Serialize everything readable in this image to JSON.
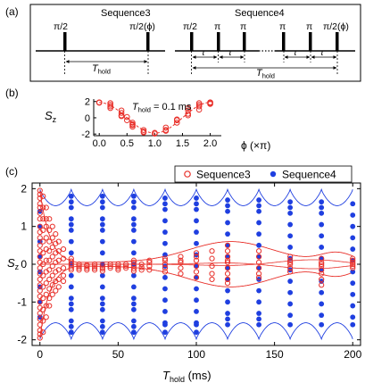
{
  "panel_labels": {
    "a": "(a)",
    "b": "(b)",
    "c": "(c)"
  },
  "panel_a": {
    "seq3_title": "Sequence3",
    "seq4_title": "Sequence4",
    "pi_half": "π/2",
    "pi_half_phi": "π/2(ϕ)",
    "pi": "π",
    "tau": "τ",
    "t_hold_main": "T",
    "t_hold_sub": "hold"
  },
  "chart_data": [
    {
      "type": "scatter",
      "panel": "b",
      "annotation": {
        "main": "T",
        "sub": "hold",
        "rest": " = 0.1 ms"
      },
      "ylabel": {
        "main": "S",
        "sub": "z"
      },
      "xlabel": "ϕ (×π)",
      "xlim": [
        -0.1,
        2.2
      ],
      "ylim": [
        -2.2,
        2.3
      ],
      "xticks": [
        "0.0",
        "0.5",
        "1.0",
        "1.5",
        "2.0"
      ],
      "xtick_values": [
        0,
        0.5,
        1,
        1.5,
        2
      ],
      "yticks": [
        "2",
        "0",
        "-2"
      ],
      "ytick_values": [
        2,
        0,
        -2
      ],
      "colors": {
        "points": "#e8302a",
        "fit": "#e8302a"
      },
      "fit": "dashed cosine",
      "points": [
        [
          0,
          1.85
        ],
        [
          0,
          1.9
        ],
        [
          0.2,
          1.4
        ],
        [
          0.2,
          1.6
        ],
        [
          0.2,
          1.2
        ],
        [
          0.2,
          1.8
        ],
        [
          0.4,
          0.6
        ],
        [
          0.4,
          0.2
        ],
        [
          0.4,
          0.9
        ],
        [
          0.4,
          0.3
        ],
        [
          0.5,
          0.1
        ],
        [
          0.5,
          -0.3
        ],
        [
          0.6,
          -0.6
        ],
        [
          0.6,
          -0.9
        ],
        [
          0.6,
          -1.1
        ],
        [
          0.6,
          -0.8
        ],
        [
          0.8,
          -1.5
        ],
        [
          0.8,
          -1.8
        ],
        [
          0.8,
          -1.7
        ],
        [
          1.0,
          -1.95
        ],
        [
          1.0,
          -1.85
        ],
        [
          1.2,
          -1.2
        ],
        [
          1.2,
          -1.5
        ],
        [
          1.2,
          -1.6
        ],
        [
          1.4,
          -0.6
        ],
        [
          1.4,
          -0.2
        ],
        [
          1.4,
          -0.3
        ],
        [
          1.6,
          0.5
        ],
        [
          1.6,
          0.9
        ],
        [
          1.6,
          1.2
        ],
        [
          1.6,
          0.3
        ],
        [
          1.8,
          1.4
        ],
        [
          1.8,
          1.6
        ],
        [
          1.8,
          1.8
        ],
        [
          1.8,
          1.0
        ],
        [
          2.0,
          1.8
        ],
        [
          2.0,
          1.9
        ],
        [
          2.0,
          1.7
        ]
      ]
    },
    {
      "type": "scatter",
      "panel": "c",
      "xlabel": {
        "main": "T",
        "sub": "hold",
        "rest": " (ms)"
      },
      "ylabel": {
        "main": "S",
        "sub": "z"
      },
      "xlim": [
        -5,
        205
      ],
      "ylim": [
        -2.15,
        2.15
      ],
      "xticks": [
        "0",
        "50",
        "100",
        "150",
        "200"
      ],
      "xtick_values": [
        0,
        50,
        100,
        150,
        200
      ],
      "yticks": [
        "2",
        "1",
        "0",
        "-1",
        "-2"
      ],
      "ytick_values": [
        2,
        1,
        0,
        -1,
        -2
      ],
      "legend_position": "top-right",
      "series": [
        {
          "name": "Sequence3",
          "marker": "open-circle",
          "color": "#e8302a",
          "columns": [
            {
              "x": 0,
              "y": [
                1.95,
                1.85,
                1.75,
                1.6,
                1.5,
                1.35,
                1.2,
                1.0,
                0.85,
                0.7,
                0.5,
                0.35,
                0.2,
                0.05,
                -0.1,
                -0.25,
                -0.4,
                -0.55,
                -0.7,
                -0.85,
                -1.0,
                -1.15,
                -1.3,
                -1.45,
                -1.6,
                -1.75,
                -1.85,
                -1.95
              ]
            },
            {
              "x": 2,
              "y": [
                1.8,
                1.5,
                1.2,
                0.9,
                0.6,
                0.3,
                0.0,
                -0.3,
                -0.6,
                -0.9,
                -1.2,
                -1.5,
                -1.8
              ]
            },
            {
              "x": 4,
              "y": [
                1.5,
                1.2,
                1.0,
                0.7,
                0.4,
                0.1,
                -0.2,
                -0.5,
                -0.8,
                -1.1,
                -1.4
              ]
            },
            {
              "x": 6,
              "y": [
                1.2,
                0.9,
                0.6,
                0.35,
                0.1,
                -0.15,
                -0.4,
                -0.65,
                -0.9,
                -1.1
              ]
            },
            {
              "x": 8,
              "y": [
                1.0,
                0.7,
                0.45,
                0.2,
                -0.05,
                -0.3,
                -0.55,
                -0.8
              ]
            },
            {
              "x": 10,
              "y": [
                0.8,
                0.55,
                0.3,
                0.05,
                -0.2,
                -0.45,
                -0.7
              ]
            },
            {
              "x": 12,
              "y": [
                0.6,
                0.35,
                0.1,
                -0.15,
                -0.4,
                -0.6
              ]
            },
            {
              "x": 15,
              "y": [
                0.4,
                0.15,
                -0.1,
                -0.3,
                -0.45
              ]
            },
            {
              "x": 20,
              "y": [
                0.08,
                0.02,
                -0.04,
                -0.1,
                0.15,
                -0.15
              ]
            },
            {
              "x": 25,
              "y": [
                -0.05,
                -0.1,
                -0.15,
                0.0
              ]
            },
            {
              "x": 30,
              "y": [
                -0.05,
                -0.1,
                -0.15,
                -0.02
              ]
            },
            {
              "x": 35,
              "y": [
                -0.05,
                -0.1,
                -0.15,
                0.0
              ]
            },
            {
              "x": 40,
              "y": [
                -0.02,
                -0.08,
                -0.12,
                -0.18
              ]
            },
            {
              "x": 45,
              "y": [
                -0.05,
                -0.1,
                0.0
              ]
            },
            {
              "x": 50,
              "y": [
                0.0,
                -0.05,
                -0.1,
                -0.15
              ]
            },
            {
              "x": 55,
              "y": [
                -0.05,
                -0.1,
                0.0
              ]
            },
            {
              "x": 60,
              "y": [
                0.05,
                -0.05,
                -0.12,
                -0.18,
                0.1
              ]
            },
            {
              "x": 65,
              "y": [
                0.0,
                -0.08,
                -0.15
              ]
            },
            {
              "x": 70,
              "y": [
                0.05,
                -0.05,
                -0.15,
                0.1
              ]
            },
            {
              "x": 80,
              "y": [
                0.1,
                0.0,
                -0.1,
                -0.2,
                0.15
              ]
            },
            {
              "x": 90,
              "y": [
                0.2,
                0.05,
                -0.1,
                -0.25,
                0.1
              ]
            },
            {
              "x": 100,
              "y": [
                0.3,
                0.1,
                -0.05,
                -0.2,
                -0.35,
                0.2
              ]
            },
            {
              "x": 110,
              "y": [
                0.35,
                0.15,
                -0.05,
                -0.25,
                -0.4
              ]
            },
            {
              "x": 120,
              "y": [
                0.5,
                0.35,
                0.2,
                0.05,
                -0.1,
                -0.25,
                -0.4,
                -0.5,
                0.1
              ]
            },
            {
              "x": 140,
              "y": [
                0.35,
                0.2,
                0.05,
                -0.1,
                -0.25,
                -0.35
              ]
            },
            {
              "x": 160,
              "y": [
                0.2,
                0.1,
                0.0,
                -0.1,
                -0.2,
                0.05
              ]
            },
            {
              "x": 180,
              "y": [
                0.15,
                0.05,
                -0.05,
                -0.15,
                -0.25,
                -0.4,
                -0.55,
                0.0
              ]
            },
            {
              "x": 200,
              "y": [
                0.15,
                0.1,
                0.0,
                -0.05,
                -0.1,
                0.05
              ]
            }
          ]
        },
        {
          "name": "Sequence4",
          "marker": "filled-circle",
          "color": "#1f3fe0",
          "columns": [
            {
              "x": 0,
              "y": [
                1.4,
                1.0,
                0.6,
                0.2,
                -0.2,
                -0.6,
                -1.0,
                -1.4
              ]
            },
            {
              "x": 20,
              "y": [
                1.8,
                1.5,
                1.2,
                0.9,
                0.6,
                0.3,
                0.0,
                -0.3,
                -0.6,
                -0.9,
                -1.2,
                -1.5,
                -1.8,
                1.65,
                -1.65,
                1.05,
                -1.05
              ]
            },
            {
              "x": 40,
              "y": [
                1.8,
                1.5,
                1.2,
                0.9,
                0.6,
                0.3,
                0.0,
                -0.3,
                -0.6,
                -0.9,
                -1.2,
                -1.5,
                -1.8,
                1.65,
                -1.65,
                1.05,
                -1.05
              ]
            },
            {
              "x": 60,
              "y": [
                1.8,
                1.5,
                1.2,
                0.9,
                0.6,
                0.3,
                0.0,
                -0.3,
                -0.6,
                -0.9,
                -1.2,
                -1.5,
                -1.8,
                1.65,
                -1.65,
                1.05,
                -1.05
              ]
            },
            {
              "x": 80,
              "y": [
                1.75,
                1.45,
                1.15,
                0.85,
                0.55,
                0.25,
                -0.05,
                -0.35,
                -0.65,
                -0.95,
                -1.25,
                -1.55,
                -1.8,
                1.6,
                -1.6
              ]
            },
            {
              "x": 100,
              "y": [
                1.75,
                1.45,
                1.15,
                0.85,
                0.55,
                0.25,
                -0.05,
                -0.35,
                -0.65,
                -0.95,
                -1.25,
                -1.55,
                -1.8,
                1.6,
                -1.6
              ]
            },
            {
              "x": 120,
              "y": [
                1.7,
                1.4,
                1.1,
                0.8,
                0.5,
                0.2,
                -0.1,
                -0.4,
                -0.7,
                -1.0,
                -1.3,
                -1.6,
                1.55,
                -1.45
              ]
            },
            {
              "x": 140,
              "y": [
                1.7,
                1.4,
                1.1,
                0.8,
                0.5,
                0.2,
                -0.1,
                -0.4,
                -0.7,
                -1.0,
                -1.3,
                -1.6,
                1.55,
                -1.45
              ]
            },
            {
              "x": 160,
              "y": [
                1.65,
                1.35,
                1.05,
                0.75,
                0.45,
                0.15,
                -0.15,
                -0.45,
                -0.75,
                -1.05,
                -1.35,
                -1.6,
                1.5
              ]
            },
            {
              "x": 180,
              "y": [
                1.65,
                1.35,
                1.05,
                0.75,
                0.45,
                0.15,
                -0.15,
                -0.45,
                -0.75,
                -1.05,
                -1.35,
                -1.6,
                1.5
              ]
            },
            {
              "x": 200,
              "y": [
                1.6,
                1.3,
                1.0,
                0.7,
                0.4,
                0.1,
                -0.2,
                -0.5,
                -0.8,
                -1.1,
                -1.4,
                -1.6
              ]
            }
          ]
        }
      ],
      "envelopes": {
        "seq3_color": "#e8302a",
        "seq4_color": "#1f3fe0",
        "seq4_period": 20,
        "seq4_min": 1.55,
        "seq4_max": 1.98
      }
    }
  ]
}
